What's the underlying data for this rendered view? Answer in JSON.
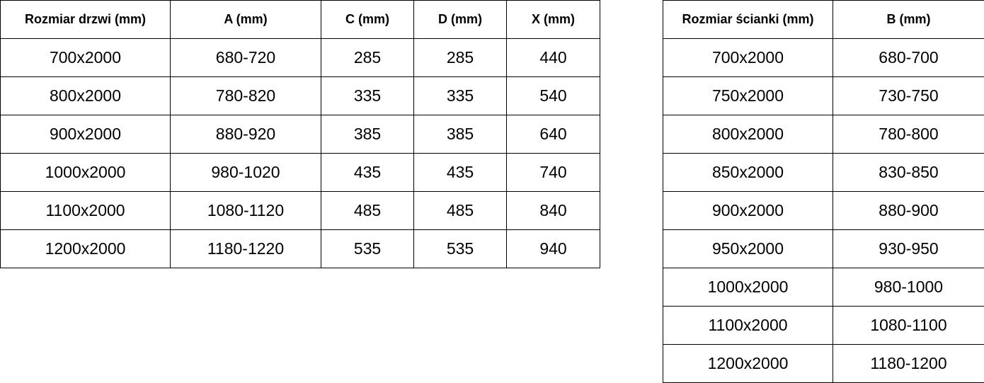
{
  "door_table": {
    "headers": [
      "Rozmiar drzwi (mm)",
      "A (mm)",
      "C (mm)",
      "D (mm)",
      "X (mm)"
    ],
    "rows": [
      [
        "700x2000",
        "680-720",
        "285",
        "285",
        "440"
      ],
      [
        "800x2000",
        "780-820",
        "335",
        "335",
        "540"
      ],
      [
        "900x2000",
        "880-920",
        "385",
        "385",
        "640"
      ],
      [
        "1000x2000",
        "980-1020",
        "435",
        "435",
        "740"
      ],
      [
        "1100x2000",
        "1080-1120",
        "485",
        "485",
        "840"
      ],
      [
        "1200x2000",
        "1180-1220",
        "535",
        "535",
        "940"
      ]
    ]
  },
  "wall_table": {
    "headers": [
      "Rozmiar ścianki (mm)",
      "B (mm)"
    ],
    "rows": [
      [
        "700x2000",
        "680-700"
      ],
      [
        "750x2000",
        "730-750"
      ],
      [
        "800x2000",
        "780-800"
      ],
      [
        "850x2000",
        "830-850"
      ],
      [
        "900x2000",
        "880-900"
      ],
      [
        "950x2000",
        "930-950"
      ],
      [
        "1000x2000",
        "980-1000"
      ],
      [
        "1100x2000",
        "1080-1100"
      ],
      [
        "1200x2000",
        "1180-1200"
      ]
    ]
  }
}
